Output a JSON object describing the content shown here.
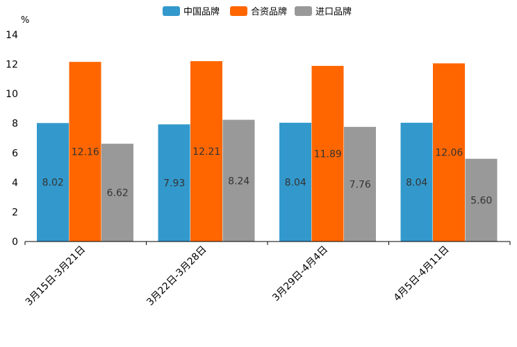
{
  "chart_data": {
    "type": "bar",
    "title": "",
    "xlabel": "",
    "ylabel": "%",
    "ylim": [
      0,
      14
    ],
    "yticks": [
      0,
      2,
      4,
      6,
      8,
      10,
      12,
      14
    ],
    "grid": false,
    "legend_position": "top-center",
    "categories": [
      "3月15日-3月21日",
      "3月22日-3月28日",
      "3月29日-4月4日",
      "4月5日-4月11日"
    ],
    "series": [
      {
        "name": "中国品牌",
        "color": "#3399CC",
        "values": [
          8.02,
          7.93,
          8.04,
          8.04
        ],
        "labels": [
          "8.02",
          "7.93",
          "8.04",
          "8.04"
        ]
      },
      {
        "name": "合资品牌",
        "color": "#FF6600",
        "values": [
          12.16,
          12.21,
          11.89,
          12.06
        ],
        "labels": [
          "12.16",
          "12.21",
          "11.89",
          "12.06"
        ]
      },
      {
        "name": "进口品牌",
        "color": "#999999",
        "values": [
          6.62,
          8.24,
          7.76,
          5.6
        ],
        "labels": [
          "6.62",
          "8.24",
          "7.76",
          "5.60"
        ]
      }
    ]
  }
}
